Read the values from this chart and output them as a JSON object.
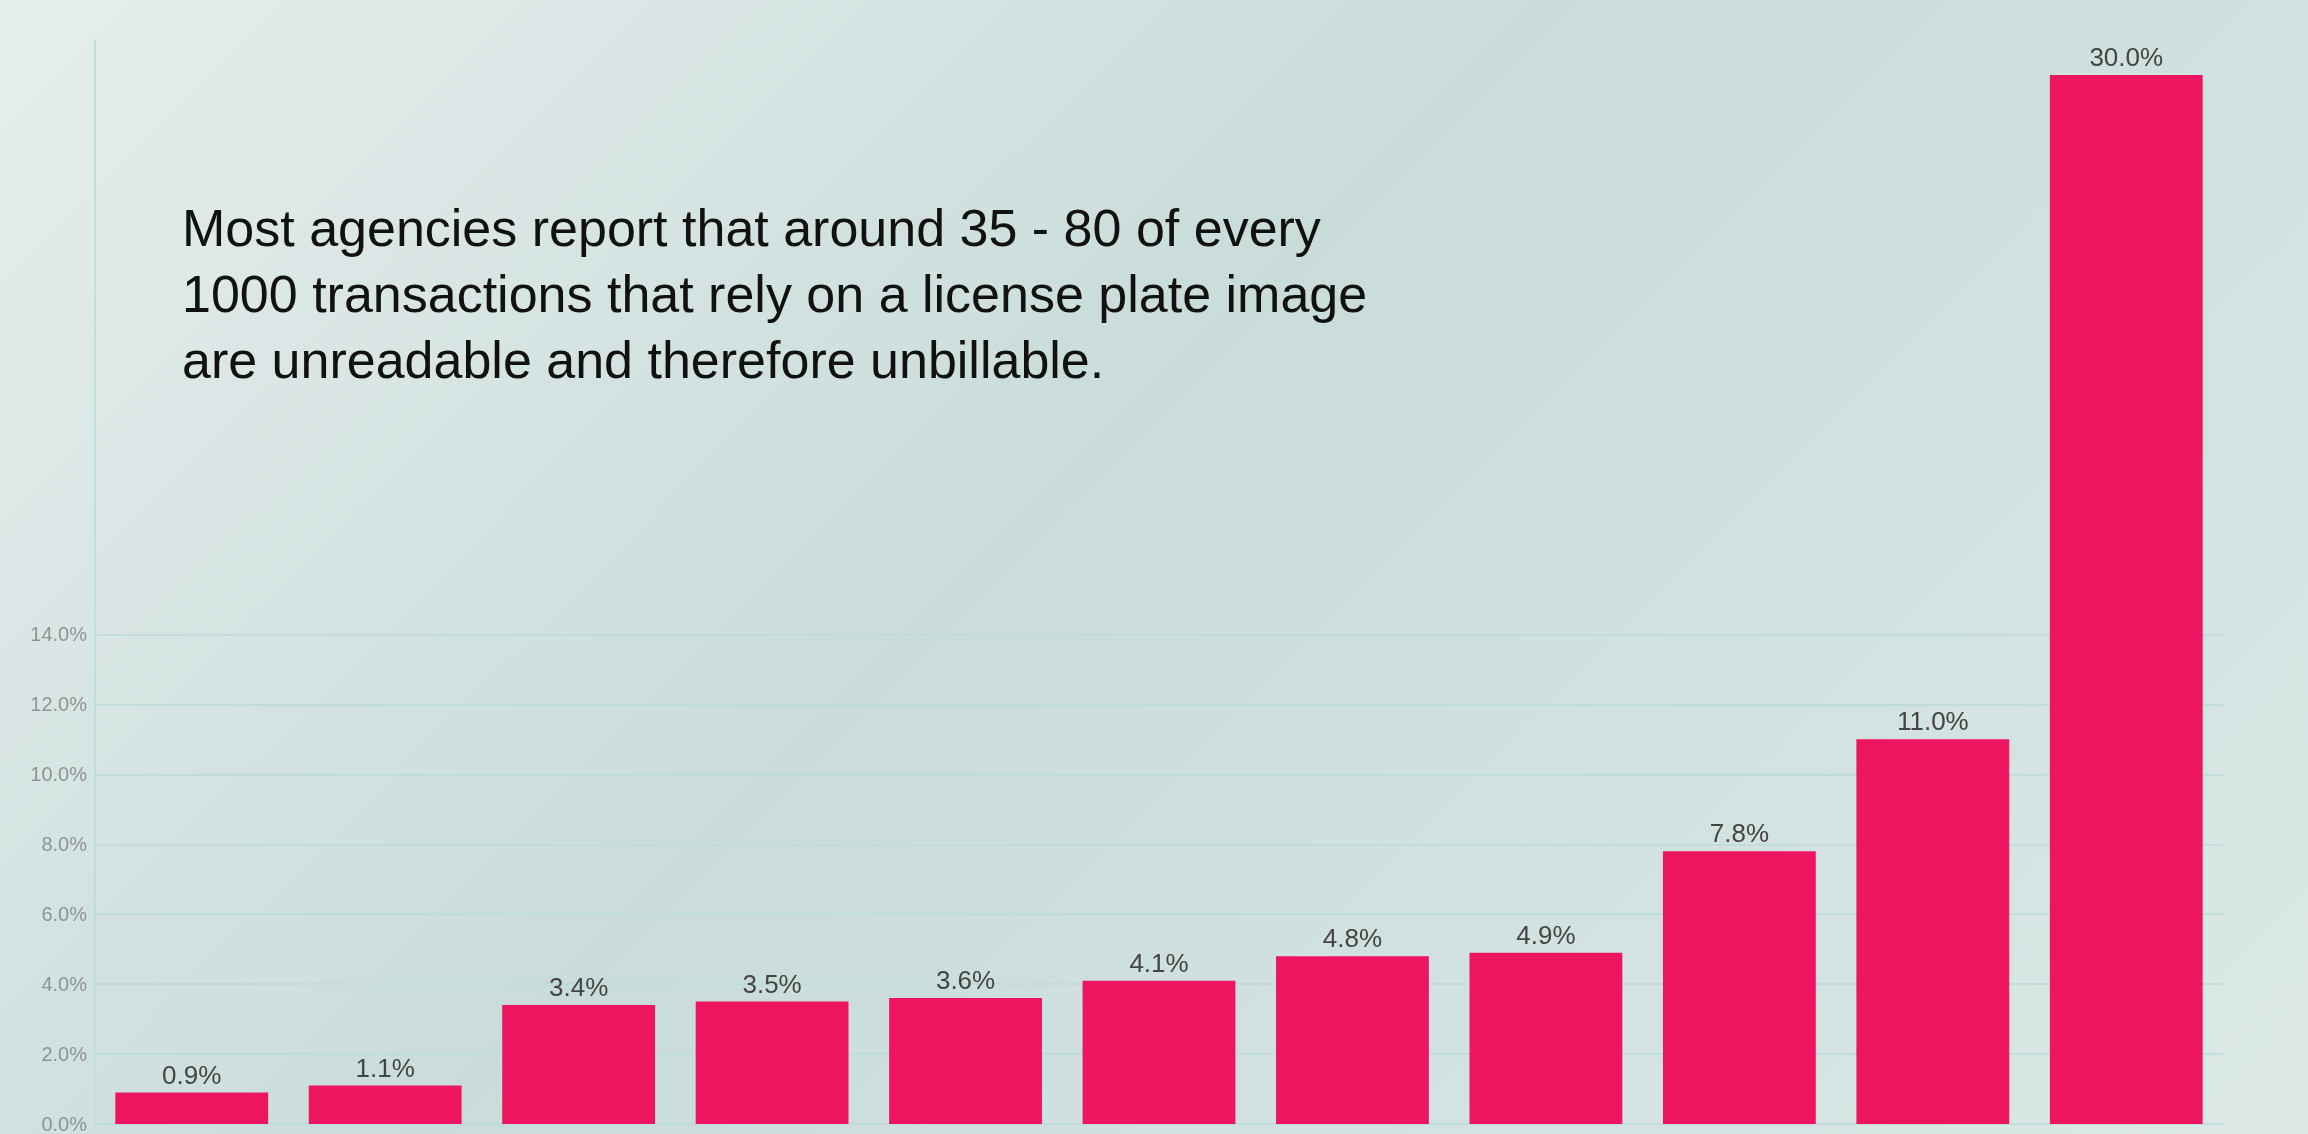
{
  "chart_data": {
    "type": "bar",
    "categories": [
      null,
      null,
      null,
      null,
      null,
      null,
      null,
      null,
      null,
      null,
      null
    ],
    "series": [
      {
        "color": "#ee1560",
        "values": [
          0.9,
          1.1,
          3.4,
          3.5,
          3.6,
          4.1,
          4.8,
          4.9,
          7.8,
          11.0,
          30.0
        ],
        "value_labels": [
          "0.9%",
          "1.1%",
          "3.4%",
          "3.5%",
          "3.6%",
          "4.1%",
          "4.8%",
          "4.9%",
          "7.8%",
          "11.0%",
          "30.0%"
        ]
      }
    ],
    "ylim": [
      0,
      31
    ],
    "yticks": [
      {
        "value": 0,
        "label": "0.0%"
      },
      {
        "value": 2,
        "label": "2.0%"
      },
      {
        "value": 4,
        "label": "4.0%"
      },
      {
        "value": 6,
        "label": "6.0%"
      },
      {
        "value": 8,
        "label": "8.0%"
      },
      {
        "value": 10,
        "label": "10.0%"
      },
      {
        "value": 12,
        "label": "12.0%"
      },
      {
        "value": 14,
        "label": "14.0%"
      }
    ],
    "grid": "y",
    "annotations": [
      "Most agencies report that around 35 - 80 of every 1000 transactions that rely on a license plate image are unreadable and therefore unbillable."
    ]
  }
}
